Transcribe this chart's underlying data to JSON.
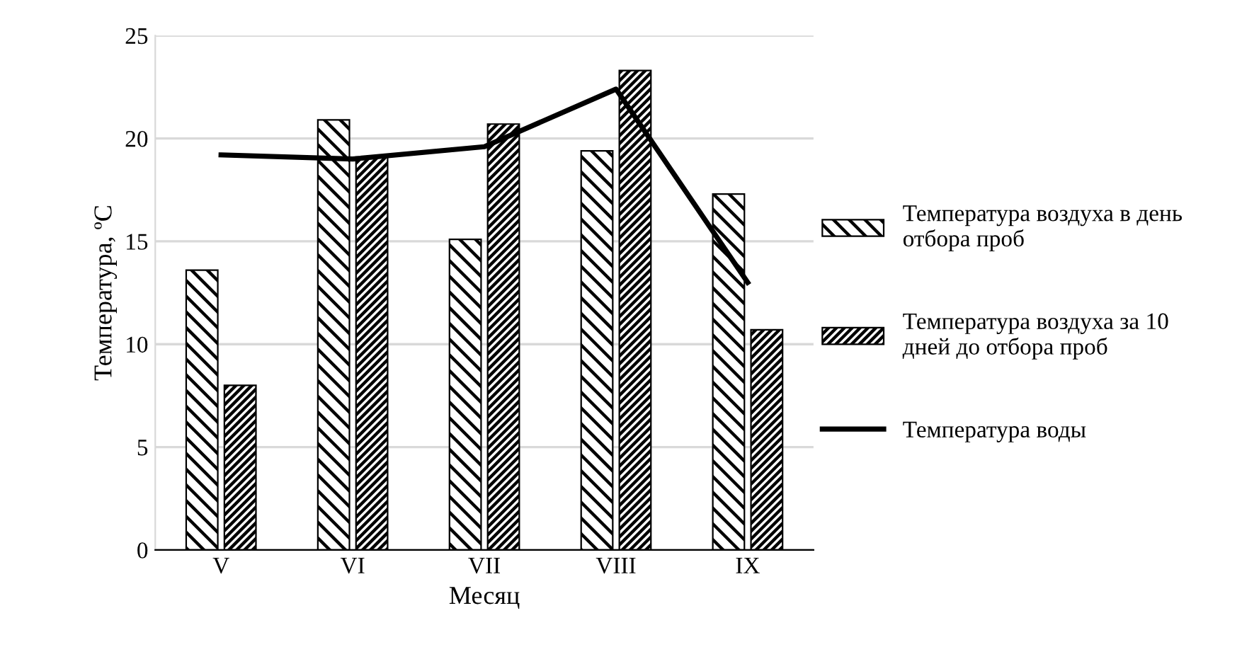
{
  "chart_data": {
    "type": "bar",
    "xlabel": "Месяц",
    "ylabel": "Температура, ºС",
    "categories": [
      "V",
      "VI",
      "VII",
      "VIII",
      "IX"
    ],
    "series": [
      {
        "name": "Температура воздуха в день отбора проб",
        "color": "#000000",
        "values": [
          13.6,
          20.9,
          15.1,
          19.4,
          17.3
        ]
      },
      {
        "name": "Температура воздуха за 10 дней до отбора проб",
        "color": "#000000",
        "values": [
          8.0,
          19.1,
          20.7,
          23.3,
          10.7
        ]
      },
      {
        "name": "Температура воды",
        "type": "line",
        "color": "#000000",
        "values": [
          19.2,
          19.0,
          19.6,
          22.4,
          13.0
        ]
      }
    ],
    "ylim": [
      0,
      25
    ],
    "yticks": [
      0,
      5,
      10,
      15,
      20,
      25
    ],
    "grid": "y",
    "legend": "right"
  }
}
